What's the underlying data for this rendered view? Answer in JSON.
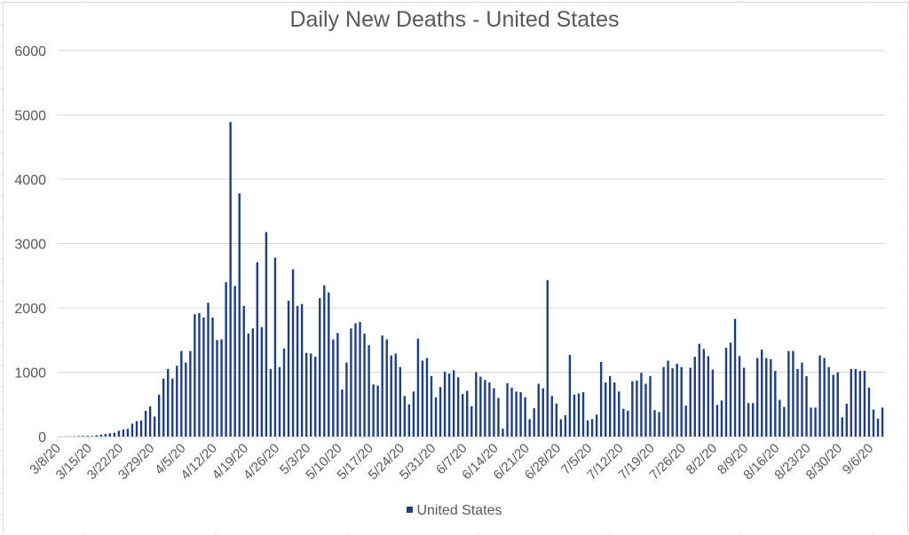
{
  "chart_data": {
    "type": "bar",
    "title": "Daily New Deaths - United States",
    "xlabel": "",
    "ylabel": "",
    "ylim": [
      0,
      6000
    ],
    "yticks": [
      0,
      1000,
      2000,
      3000,
      4000,
      5000,
      6000
    ],
    "xtick_labels": [
      "3/8/20",
      "3/15/20",
      "3/22/20",
      "3/29/20",
      "4/5/20",
      "4/12/20",
      "4/19/20",
      "4/26/20",
      "5/3/20",
      "5/10/20",
      "5/17/20",
      "5/24/20",
      "5/31/20",
      "6/7/20",
      "6/14/20",
      "6/21/20",
      "6/28/20",
      "7/5/20",
      "7/12/20",
      "7/19/20",
      "7/26/20",
      "8/2/20",
      "8/9/20",
      "8/16/20",
      "8/23/20",
      "8/30/20",
      "9/6/20"
    ],
    "start_date": "3/8/20",
    "grid": true,
    "legend_position": "bottom",
    "series": [
      {
        "name": "United States",
        "color": "#203f7e",
        "values": [
          2,
          3,
          4,
          5,
          8,
          10,
          12,
          10,
          20,
          30,
          40,
          50,
          60,
          90,
          110,
          120,
          200,
          240,
          250,
          400,
          470,
          310,
          650,
          900,
          1050,
          900,
          1100,
          1330,
          1150,
          1330,
          1900,
          1920,
          1850,
          2080,
          1850,
          1500,
          1510,
          2400,
          4890,
          2340,
          3780,
          2030,
          1600,
          1680,
          2710,
          1700,
          3180,
          1050,
          2780,
          1080,
          1370,
          2110,
          2600,
          2030,
          2060,
          1300,
          1290,
          1240,
          2150,
          2350,
          2240,
          1510,
          1610,
          730,
          1150,
          1680,
          1760,
          1780,
          1600,
          1420,
          810,
          790,
          1570,
          1510,
          1260,
          1290,
          1080,
          630,
          500,
          700,
          1520,
          1180,
          1220,
          940,
          610,
          770,
          1010,
          980,
          1030,
          920,
          660,
          710,
          470,
          1000,
          930,
          880,
          840,
          750,
          600,
          120,
          830,
          760,
          700,
          690,
          610,
          270,
          440,
          820,
          750,
          2430,
          630,
          510,
          270,
          330,
          1270,
          650,
          670,
          690,
          250,
          270,
          340,
          1160,
          840,
          940,
          840,
          700,
          430,
          400,
          860,
          870,
          990,
          820,
          940,
          410,
          380,
          1080,
          1180,
          1060,
          1130,
          1080,
          480,
          1070,
          1240,
          1440,
          1360,
          1250,
          1040,
          490,
          560,
          1380,
          1460,
          1830,
          1250,
          1070,
          520,
          520,
          1220,
          1350,
          1220,
          1200,
          1020,
          570,
          460,
          1330,
          1330,
          1050,
          1150,
          940,
          450,
          450,
          1260,
          1220,
          1080,
          960,
          1000,
          300,
          510,
          1050,
          1050,
          1020,
          1020,
          760,
          420,
          280,
          450
        ]
      }
    ]
  }
}
